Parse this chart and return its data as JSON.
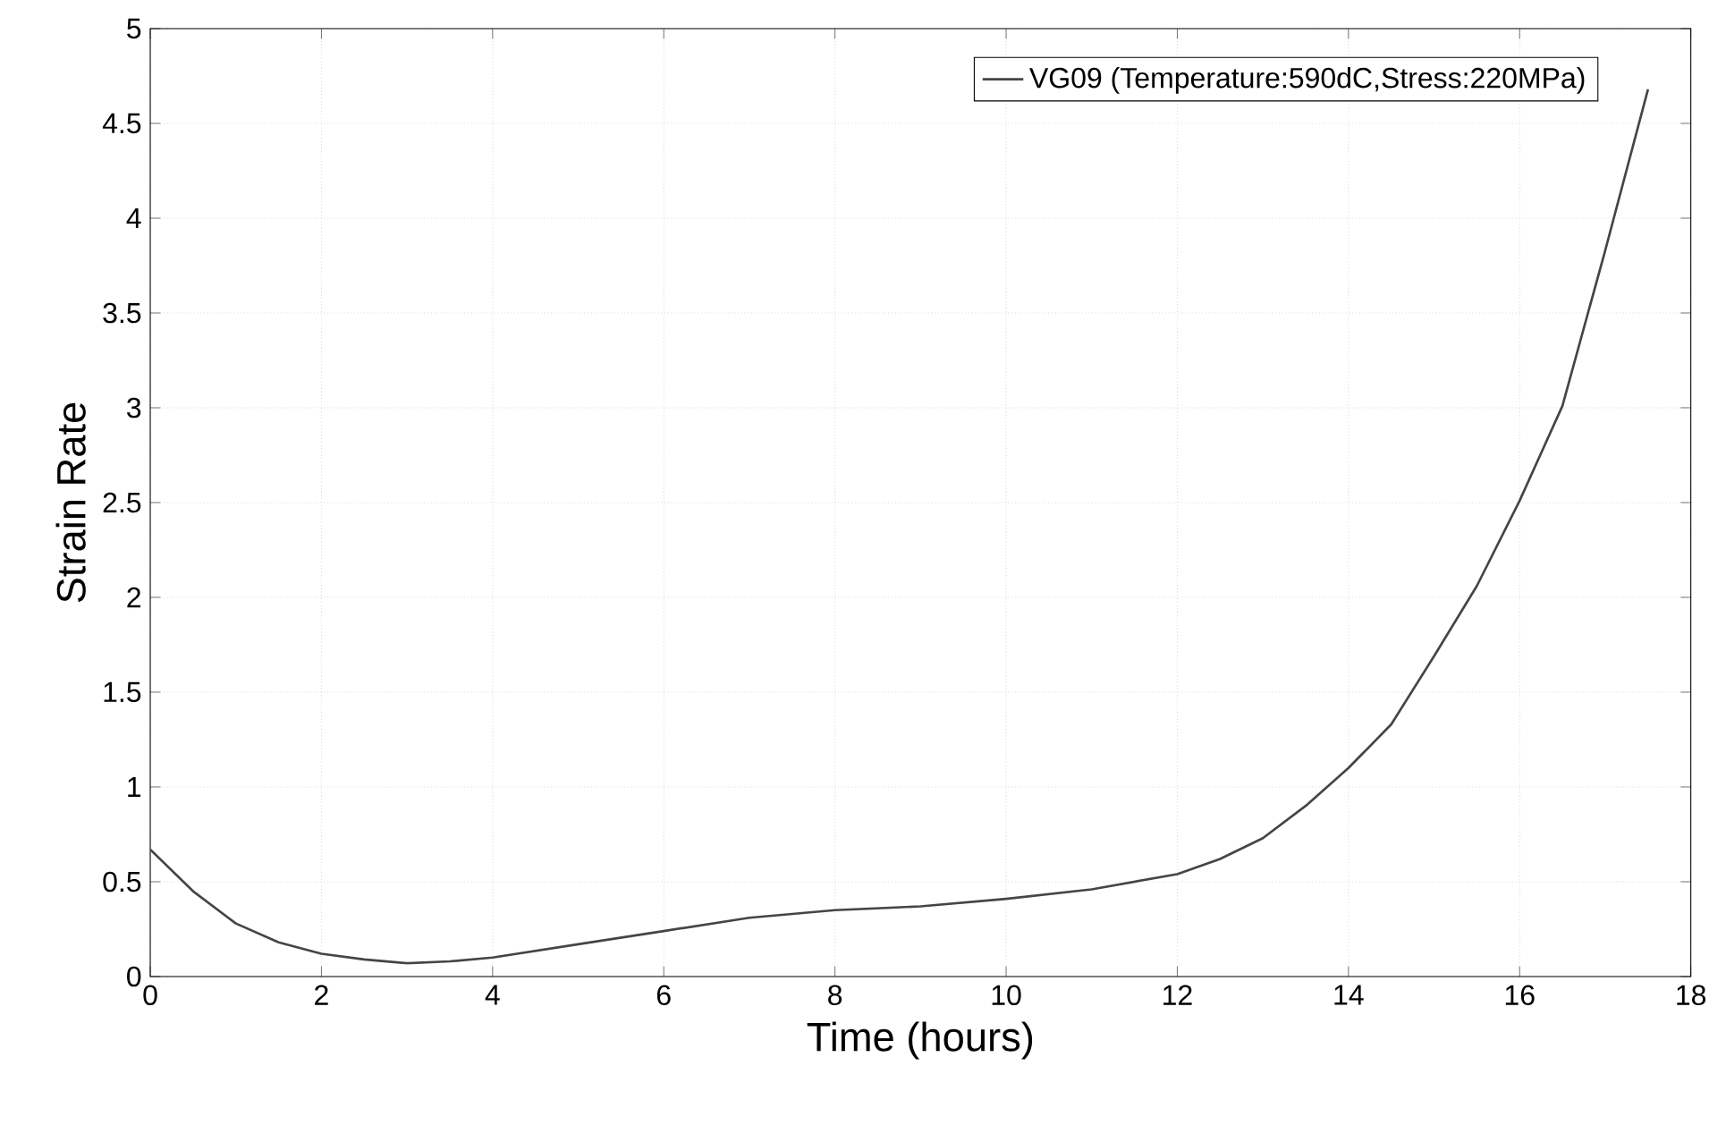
{
  "chart_data": {
    "type": "line",
    "xlabel": "Time (hours)",
    "ylabel": "Strain Rate",
    "x": [
      0,
      0.5,
      1,
      1.5,
      2,
      2.5,
      3,
      3.5,
      4,
      5,
      6,
      7,
      8,
      9,
      10,
      11,
      12,
      12.5,
      13,
      13.5,
      14,
      14.5,
      15,
      15.5,
      16,
      16.5,
      17,
      17.5
    ],
    "series": [
      {
        "name": "VG09 (Temperature:590dC,Stress:220MPa)",
        "color": "#454545",
        "values": [
          0.67,
          0.45,
          0.28,
          0.18,
          0.12,
          0.09,
          0.07,
          0.08,
          0.1,
          0.17,
          0.24,
          0.31,
          0.35,
          0.37,
          0.41,
          0.46,
          0.54,
          0.62,
          0.73,
          0.9,
          1.1,
          1.33,
          1.69,
          2.06,
          2.51,
          3.01,
          3.83,
          4.68
        ]
      }
    ],
    "xlim": [
      0,
      18
    ],
    "ylim": [
      0,
      5
    ],
    "xticks": [
      0,
      2,
      4,
      6,
      8,
      10,
      12,
      14,
      16,
      18
    ],
    "yticks": [
      0,
      0.5,
      1,
      1.5,
      2,
      2.5,
      3,
      3.5,
      4,
      4.5,
      5
    ],
    "grid": true,
    "legend": "top right"
  }
}
